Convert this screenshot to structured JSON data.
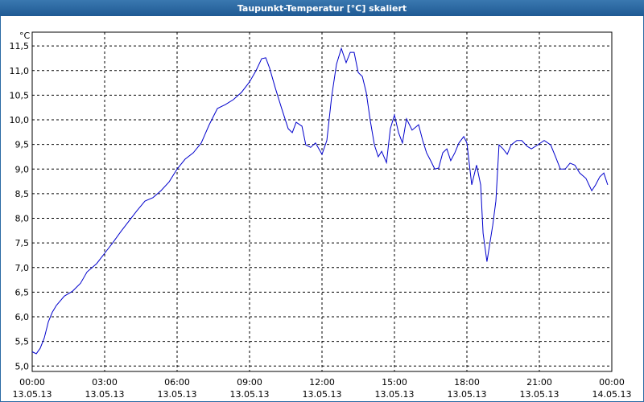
{
  "chart_data": {
    "type": "line",
    "title": "Taupunkt-Temperatur [°C] skaliert",
    "y_unit": "°C",
    "x": [
      0,
      0.17,
      0.33,
      0.5,
      0.67,
      0.83,
      1.0,
      1.33,
      1.67,
      2.0,
      2.27,
      2.67,
      3.0,
      3.33,
      3.67,
      4.0,
      4.33,
      4.67,
      5.0,
      5.33,
      5.67,
      6.0,
      6.33,
      6.67,
      7.0,
      7.33,
      7.67,
      8.0,
      8.33,
      8.67,
      9.0,
      9.27,
      9.5,
      9.67,
      9.83,
      10.07,
      10.33,
      10.6,
      10.77,
      10.93,
      11.17,
      11.33,
      11.53,
      11.73,
      12.0,
      12.2,
      12.4,
      12.6,
      12.8,
      13.0,
      13.17,
      13.33,
      13.5,
      13.67,
      13.83,
      14.0,
      14.17,
      14.33,
      14.47,
      14.67,
      14.83,
      15.0,
      15.17,
      15.33,
      15.5,
      15.73,
      16.0,
      16.17,
      16.33,
      16.5,
      16.67,
      16.83,
      17.0,
      17.17,
      17.33,
      17.5,
      17.67,
      17.87,
      18.0,
      18.2,
      18.4,
      18.57,
      18.67,
      18.83,
      19.07,
      19.2,
      19.33,
      19.5,
      19.67,
      19.83,
      20.07,
      20.27,
      20.5,
      20.67,
      20.93,
      21.2,
      21.47,
      21.67,
      21.87,
      22.07,
      22.27,
      22.47,
      22.67,
      22.93,
      23.17,
      23.33,
      23.5,
      23.67,
      23.83
    ],
    "series": [
      {
        "color": "#0000cc",
        "values": [
          5.29,
          5.25,
          5.36,
          5.57,
          5.9,
          6.09,
          6.23,
          6.42,
          6.52,
          6.68,
          6.91,
          7.08,
          7.29,
          7.5,
          7.73,
          7.94,
          8.15,
          8.35,
          8.42,
          8.56,
          8.74,
          9.0,
          9.2,
          9.33,
          9.53,
          9.9,
          10.23,
          10.31,
          10.41,
          10.56,
          10.77,
          11.0,
          11.24,
          11.26,
          11.05,
          10.64,
          10.23,
          9.82,
          9.74,
          9.95,
          9.87,
          9.49,
          9.44,
          9.53,
          9.3,
          9.58,
          10.47,
          11.13,
          11.45,
          11.16,
          11.37,
          11.37,
          10.96,
          10.88,
          10.56,
          9.98,
          9.49,
          9.25,
          9.36,
          9.13,
          9.82,
          10.1,
          9.74,
          9.53,
          10.02,
          9.79,
          9.9,
          9.58,
          9.33,
          9.17,
          9.0,
          9.02,
          9.33,
          9.41,
          9.17,
          9.33,
          9.53,
          9.66,
          9.53,
          8.68,
          9.08,
          8.68,
          7.7,
          7.12,
          7.86,
          8.35,
          9.49,
          9.41,
          9.3,
          9.49,
          9.58,
          9.58,
          9.46,
          9.41,
          9.49,
          9.58,
          9.49,
          9.25,
          9.0,
          9.0,
          9.12,
          9.08,
          8.92,
          8.81,
          8.56,
          8.68,
          8.84,
          8.92,
          8.68
        ]
      }
    ],
    "xlim": [
      0,
      24
    ],
    "xticks": [
      {
        "value": 0,
        "label": "00:00 13.05.13"
      },
      {
        "value": 3,
        "label": "03:00 13.05.13"
      },
      {
        "value": 6,
        "label": "06:00 13.05.13"
      },
      {
        "value": 9,
        "label": "09:00 13.05.13"
      },
      {
        "value": 12,
        "label": "12:00 13.05.13"
      },
      {
        "value": 15,
        "label": "15:00 13.05.13"
      },
      {
        "value": 18,
        "label": "18:00 13.05.13"
      },
      {
        "value": 21,
        "label": "21:00 13.05.13"
      },
      {
        "value": 24,
        "label": "00:00 14.05.13"
      }
    ],
    "ylim": [
      4.89,
      11.78
    ],
    "yticks": [
      {
        "value": 5,
        "label": "5,0"
      },
      {
        "value": 5.5,
        "label": "5,5"
      },
      {
        "value": 6,
        "label": "6,0"
      },
      {
        "value": 6.5,
        "label": "6,5"
      },
      {
        "value": 7,
        "label": "7,0"
      },
      {
        "value": 7.5,
        "label": "7,5"
      },
      {
        "value": 8,
        "label": "8,0"
      },
      {
        "value": 8.5,
        "label": "8,5"
      },
      {
        "value": 9,
        "label": "9,0"
      },
      {
        "value": 9.5,
        "label": "9,5"
      },
      {
        "value": 10,
        "label": "10,0"
      },
      {
        "value": 10.5,
        "label": "10,5"
      },
      {
        "value": 11,
        "label": "11,0"
      },
      {
        "value": 11.5,
        "label": "11,5"
      }
    ],
    "grid": true
  }
}
